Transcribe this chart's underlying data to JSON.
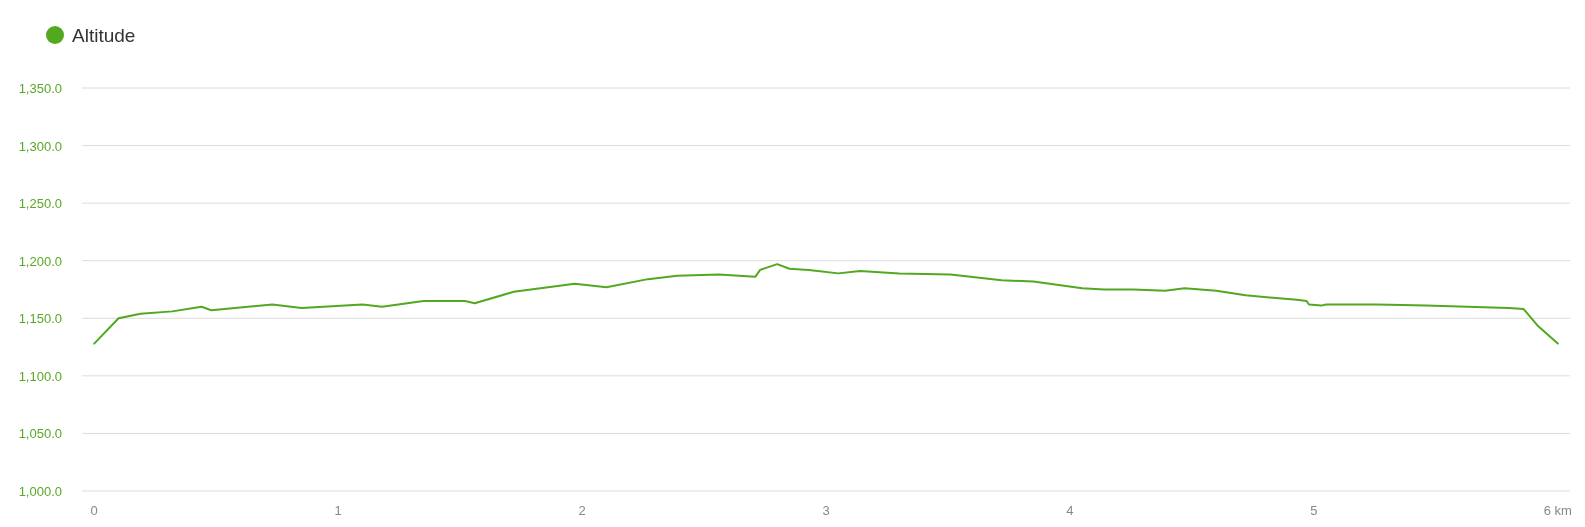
{
  "chart_data": {
    "type": "line",
    "x": [
      0,
      0.1,
      0.19,
      0.32,
      0.44,
      0.48,
      0.73,
      0.85,
      1.1,
      1.18,
      1.35,
      1.52,
      1.56,
      1.72,
      1.97,
      2.1,
      2.27,
      2.39,
      2.56,
      2.71,
      2.73,
      2.8,
      2.85,
      2.93,
      3.05,
      3.14,
      3.3,
      3.51,
      3.72,
      3.85,
      4.05,
      4.14,
      4.26,
      4.39,
      4.47,
      4.6,
      4.72,
      4.93,
      4.97,
      4.98,
      5.03,
      5.05,
      5.26,
      5.46,
      5.8,
      5.86,
      5.92,
      6.0
    ],
    "series": [
      {
        "name": "Altitude",
        "color": "#52a81f",
        "values": [
          1128,
          1150,
          1154,
          1156,
          1160,
          1157,
          1162,
          1159,
          1162,
          1160,
          1165,
          1165,
          1163,
          1173,
          1180,
          1177,
          1184,
          1187,
          1188,
          1186,
          1192,
          1197,
          1193,
          1192,
          1189,
          1191,
          1189,
          1188,
          1183,
          1182,
          1176,
          1175,
          1175,
          1174,
          1176,
          1174,
          1170,
          1166,
          1165,
          1162,
          1161,
          1162,
          1162,
          1161,
          1159,
          1158,
          1143,
          1128
        ]
      }
    ],
    "xlim": [
      -0.05,
      6.05
    ],
    "xticks": [
      0,
      1,
      2,
      3,
      4,
      5,
      {
        "value": 6,
        "label": "6 km"
      }
    ],
    "ylim": [
      1000,
      1350
    ],
    "yticks": [
      {
        "value": 1000,
        "label": "1,000.0"
      },
      {
        "value": 1050,
        "label": "1,050.0"
      },
      {
        "value": 1100,
        "label": "1,100.0"
      },
      {
        "value": 1150,
        "label": "1,150.0"
      },
      {
        "value": 1200,
        "label": "1,200.0"
      },
      {
        "value": 1250,
        "label": "1,250.0"
      },
      {
        "value": 1300,
        "label": "1,300.0"
      },
      {
        "value": 1350,
        "label": "1,350.0"
      }
    ],
    "grid": "y",
    "legend": "top left",
    "marker": "none",
    "line_style": "solid"
  }
}
